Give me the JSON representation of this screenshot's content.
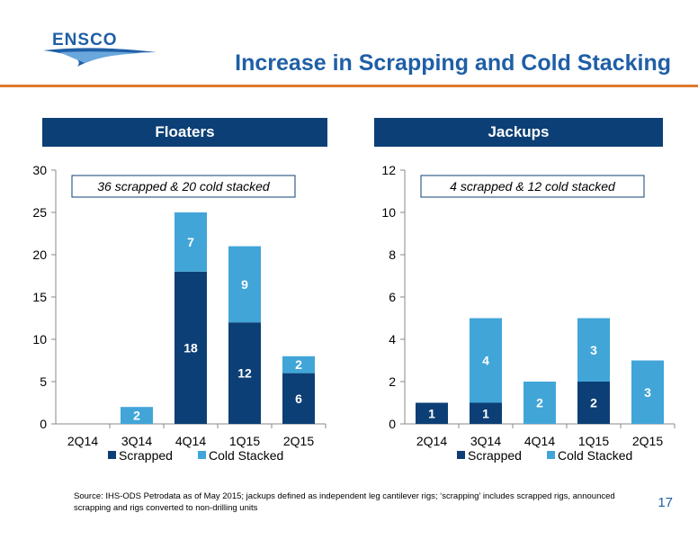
{
  "logo": {
    "text": "ENSCO"
  },
  "title": "Increase in Scrapping and Cold Stacking",
  "footnote": "Source: IHS-ODS Petrodata as of May 2015; jackups defined as independent leg cantilever rigs; ‘scrapping’ includes scrapped rigs, announced scrapping and rigs converted to non-drilling units",
  "page_number": "17",
  "colors": {
    "scrapped": "#0c3f75",
    "cold_stacked": "#41a5d8",
    "accent": "#e07a2e",
    "title": "#1f5fa6"
  },
  "chart_data": [
    {
      "type": "bar",
      "stacked": true,
      "title": "Floaters",
      "annotation": "36 scrapped & 20 cold stacked",
      "categories": [
        "2Q14",
        "3Q14",
        "4Q14",
        "1Q15",
        "2Q15"
      ],
      "ylim": [
        0,
        30
      ],
      "yticks": [
        0,
        5,
        10,
        15,
        20,
        25,
        30
      ],
      "legend_position": "bottom",
      "series": [
        {
          "name": "Scrapped",
          "values": [
            0,
            0,
            18,
            12,
            6
          ]
        },
        {
          "name": "Cold Stacked",
          "values": [
            0,
            2,
            7,
            9,
            2
          ]
        }
      ]
    },
    {
      "type": "bar",
      "stacked": true,
      "title": "Jackups",
      "annotation": "4 scrapped & 12 cold stacked",
      "categories": [
        "2Q14",
        "3Q14",
        "4Q14",
        "1Q15",
        "2Q15"
      ],
      "ylim": [
        0,
        12
      ],
      "yticks": [
        0,
        2,
        4,
        6,
        8,
        10,
        12
      ],
      "legend_position": "bottom",
      "series": [
        {
          "name": "Scrapped",
          "values": [
            1,
            1,
            0,
            2,
            0
          ]
        },
        {
          "name": "Cold Stacked",
          "values": [
            0,
            4,
            2,
            3,
            3
          ]
        }
      ]
    }
  ]
}
